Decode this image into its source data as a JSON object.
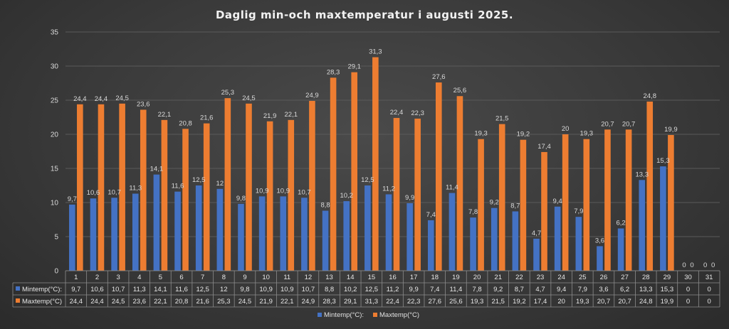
{
  "chart_data": {
    "type": "bar",
    "title": "Daglig min-och maxtemperatur i augusti 2025.",
    "categories": [
      "1",
      "2",
      "3",
      "4",
      "5",
      "6",
      "7",
      "8",
      "9",
      "10",
      "11",
      "12",
      "13",
      "14",
      "15",
      "16",
      "17",
      "18",
      "19",
      "20",
      "21",
      "22",
      "23",
      "24",
      "25",
      "26",
      "27",
      "28",
      "29",
      "30",
      "31"
    ],
    "series": [
      {
        "name": "Mintemp(°C):",
        "color": "#4472c4",
        "values": [
          9.7,
          10.6,
          10.7,
          11.3,
          14.1,
          11.6,
          12.5,
          12,
          9.8,
          10.9,
          10.9,
          10.7,
          8.8,
          10.2,
          12.5,
          11.2,
          9.9,
          7.4,
          11.4,
          7.8,
          9.2,
          8.7,
          4.7,
          9.4,
          7.9,
          3.6,
          6.2,
          13.3,
          15.3,
          0,
          0
        ],
        "labels": [
          "9,7",
          "10,6",
          "10,7",
          "11,3",
          "14,1",
          "11,6",
          "12,5",
          "12",
          "9,8",
          "10,9",
          "10,9",
          "10,7",
          "8,8",
          "10,2",
          "12,5",
          "11,2",
          "9,9",
          "7,4",
          "11,4",
          "7,8",
          "9,2",
          "8,7",
          "4,7",
          "9,4",
          "7,9",
          "3,6",
          "6,2",
          "13,3",
          "15,3",
          "0",
          "0"
        ]
      },
      {
        "name": "Maxtemp(°C)",
        "color": "#ed7d31",
        "values": [
          24.4,
          24.4,
          24.5,
          23.6,
          22.1,
          20.8,
          21.6,
          25.3,
          24.5,
          21.9,
          22.1,
          24.9,
          28.3,
          29.1,
          31.3,
          22.4,
          22.3,
          27.6,
          25.6,
          19.3,
          21.5,
          19.2,
          17.4,
          20,
          19.3,
          20.7,
          20.7,
          24.8,
          19.9,
          0,
          0
        ],
        "labels": [
          "24,4",
          "24,4",
          "24,5",
          "23,6",
          "22,1",
          "20,8",
          "21,6",
          "25,3",
          "24,5",
          "21,9",
          "22,1",
          "24,9",
          "28,3",
          "29,1",
          "31,3",
          "22,4",
          "22,3",
          "27,6",
          "25,6",
          "19,3",
          "21,5",
          "19,2",
          "17,4",
          "20",
          "19,3",
          "20,7",
          "20,7",
          "24,8",
          "19,9",
          "0",
          "0"
        ]
      }
    ],
    "y_ticks": [
      "0",
      "5",
      "10",
      "15",
      "20",
      "25",
      "30",
      "35"
    ],
    "ylim": [
      0,
      35
    ],
    "grid": true,
    "legend": [
      "Mintemp(°C):",
      "Maxtemp(°C)"
    ],
    "legend_position": "bottom",
    "data_table": true
  }
}
